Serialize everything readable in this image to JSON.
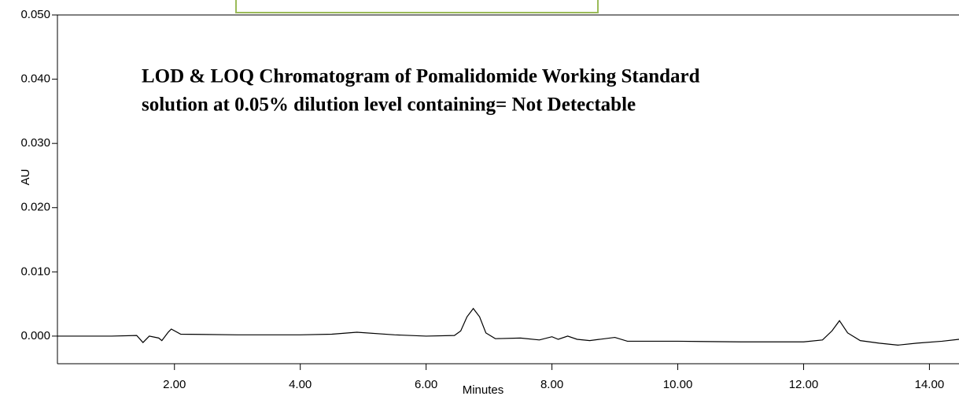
{
  "chart_data": {
    "type": "line",
    "annotation": [
      "LOD & LOQ Chromatogram of Pomalidomide Working Standard",
      "solution at 0.05% dilution level containing= Not Detectable"
    ],
    "x_label": "Minutes",
    "y_label": "AU",
    "xlim": [
      0.14,
      14.47
    ],
    "ylim": [
      -0.0043,
      0.05
    ],
    "xticks": [
      {
        "value": 2,
        "label": "2.00"
      },
      {
        "value": 4,
        "label": "4.00"
      },
      {
        "value": 6,
        "label": "6.00"
      },
      {
        "value": 8,
        "label": "8.00"
      },
      {
        "value": 10,
        "label": "10.00"
      },
      {
        "value": 12,
        "label": "12.00"
      },
      {
        "value": 14,
        "label": "14.00"
      }
    ],
    "yticks": [
      {
        "value": 0,
        "label": "0.000"
      },
      {
        "value": 0.01,
        "label": "0.010"
      },
      {
        "value": 0.02,
        "label": "0.020"
      },
      {
        "value": 0.03,
        "label": "0.030"
      },
      {
        "value": 0.04,
        "label": "0.040"
      },
      {
        "value": 0.05,
        "label": "0.050"
      }
    ],
    "color": "#000000",
    "x": [
      0.14,
      1.0,
      1.4,
      1.5,
      1.6,
      1.75,
      1.8,
      1.9,
      1.95,
      2.1,
      3.0,
      4.0,
      4.5,
      4.9,
      5.5,
      6.0,
      6.45,
      6.55,
      6.65,
      6.75,
      6.85,
      6.95,
      7.1,
      7.5,
      7.8,
      8.0,
      8.1,
      8.25,
      8.4,
      8.6,
      9.0,
      9.2,
      10.0,
      11.0,
      12.0,
      12.3,
      12.45,
      12.57,
      12.7,
      12.9,
      13.2,
      13.5,
      13.8,
      14.2,
      14.47
    ],
    "values": [
      0.0,
      0.0,
      0.0001,
      -0.001,
      0.0,
      -0.0003,
      -0.0007,
      0.0006,
      0.0011,
      0.0003,
      0.0002,
      0.0002,
      0.0003,
      0.0006,
      0.0002,
      0.0,
      0.0001,
      0.0008,
      0.003,
      0.0043,
      0.003,
      0.0005,
      -0.0004,
      -0.0003,
      -0.0006,
      -0.0001,
      -0.0005,
      0.0,
      -0.0005,
      -0.0007,
      -0.0002,
      -0.0008,
      -0.0008,
      -0.0009,
      -0.0009,
      -0.0006,
      0.0008,
      0.0024,
      0.0005,
      -0.0007,
      -0.0011,
      -0.0014,
      -0.0011,
      -0.0008,
      -0.0005
    ]
  }
}
